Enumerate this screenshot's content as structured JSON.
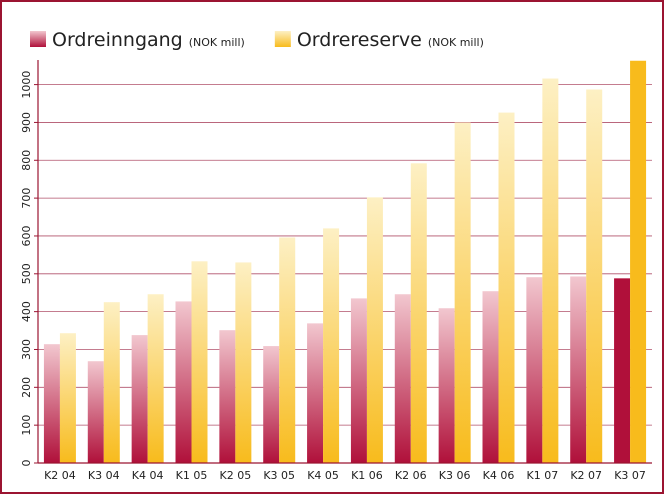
{
  "chart_data": {
    "type": "bar",
    "legend_unit": "(NOK mill)",
    "categories": [
      "K2 04",
      "K3 04",
      "K4 04",
      "K1 05",
      "K2 05",
      "K3 05",
      "K4 05",
      "K1 06",
      "K2 06",
      "K3 06",
      "K4 06",
      "K1 07",
      "K2 07",
      "K3 07"
    ],
    "series": [
      {
        "name": "Ordreinngang",
        "color": "#b0103a",
        "light": "#f2c7cf",
        "values": [
          314,
          269,
          338,
          427,
          351,
          309,
          369,
          435,
          446,
          409,
          454,
          491,
          493,
          488
        ]
      },
      {
        "name": "Ordrereserve",
        "color": "#f8bb1c",
        "light": "#fdf0c4",
        "values": [
          343,
          425,
          446,
          533,
          530,
          596,
          620,
          702,
          792,
          900,
          926,
          1016,
          987,
          1063
        ]
      }
    ],
    "highlight": "K3 07",
    "ylim": [
      0,
      1065
    ],
    "yticks": [
      0,
      100,
      200,
      300,
      400,
      500,
      600,
      700,
      800,
      900,
      1000
    ],
    "grid": true
  }
}
